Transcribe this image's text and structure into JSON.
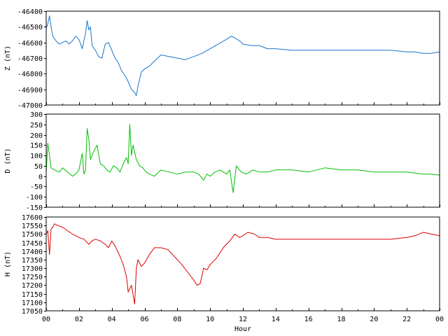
{
  "chart_data": [
    {
      "type": "line",
      "ylabel": "Z (nT)",
      "ylim": [
        -47000,
        -46400
      ],
      "yticks": [
        -46400,
        -46500,
        -46600,
        -46700,
        -46800,
        -46900,
        -47000
      ],
      "xlim": [
        0,
        24
      ],
      "color": "#1874CD",
      "series": [
        {
          "x": [
            0,
            0.1,
            0.2,
            0.3,
            0.4,
            0.6,
            0.8,
            1.0,
            1.2,
            1.4,
            1.6,
            1.8,
            2.0,
            2.2,
            2.4,
            2.5,
            2.6,
            2.7,
            2.8,
            3.0,
            3.2,
            3.4,
            3.6,
            3.8,
            4.0,
            4.2,
            4.4,
            4.6,
            4.8,
            5.0,
            5.2,
            5.4,
            5.5,
            5.6,
            5.8,
            6.0,
            6.3,
            6.6,
            7.0,
            7.5,
            8.0,
            8.5,
            9.0,
            9.5,
            10.0,
            10.5,
            11.0,
            11.3,
            11.5,
            11.8,
            12.0,
            12.5,
            13.0,
            13.5,
            14.0,
            15.0,
            16.0,
            17.0,
            18.0,
            19.0,
            20.0,
            21.0,
            22.0,
            22.5,
            23.0,
            23.5,
            24.0
          ],
          "y": [
            -46510,
            -46480,
            -46430,
            -46500,
            -46560,
            -46590,
            -46610,
            -46600,
            -46590,
            -46610,
            -46590,
            -46560,
            -46580,
            -46640,
            -46540,
            -46460,
            -46520,
            -46500,
            -46620,
            -46650,
            -46690,
            -46700,
            -46610,
            -46600,
            -46650,
            -46700,
            -46730,
            -46780,
            -46810,
            -46850,
            -46900,
            -46920,
            -46940,
            -46880,
            -46790,
            -46770,
            -46750,
            -46720,
            -46680,
            -46690,
            -46700,
            -46710,
            -46690,
            -46670,
            -46640,
            -46610,
            -46580,
            -46560,
            -46570,
            -46590,
            -46610,
            -46620,
            -46620,
            -46640,
            -46640,
            -46650,
            -46650,
            -46650,
            -46650,
            -46650,
            -46650,
            -46650,
            -46660,
            -46660,
            -46670,
            -46670,
            -46660
          ]
        }
      ]
    },
    {
      "type": "line",
      "ylabel": "D (nT)",
      "ylim": [
        -150,
        300
      ],
      "yticks": [
        300,
        250,
        200,
        150,
        100,
        50,
        0,
        -50,
        -100,
        -150
      ],
      "xlim": [
        0,
        24
      ],
      "color": "#00C000",
      "series": [
        {
          "x": [
            0,
            0.1,
            0.2,
            0.3,
            0.5,
            0.8,
            1.0,
            1.3,
            1.6,
            1.8,
            2.0,
            2.2,
            2.3,
            2.4,
            2.5,
            2.6,
            2.7,
            2.9,
            3.1,
            3.3,
            3.5,
            3.7,
            3.9,
            4.1,
            4.3,
            4.5,
            4.7,
            4.9,
            5.0,
            5.1,
            5.2,
            5.3,
            5.5,
            5.7,
            5.9,
            6.1,
            6.3,
            6.6,
            7.0,
            7.5,
            8.0,
            8.5,
            9.0,
            9.3,
            9.6,
            9.8,
            10.0,
            10.3,
            10.6,
            11.0,
            11.2,
            11.4,
            11.6,
            11.9,
            12.2,
            12.6,
            13.0,
            13.5,
            14.0,
            15.0,
            16.0,
            16.5,
            17.0,
            18.0,
            19.0,
            20.0,
            21.0,
            22.0,
            23.0,
            23.5,
            24.0
          ],
          "y": [
            20,
            160,
            100,
            40,
            30,
            20,
            40,
            20,
            0,
            10,
            30,
            110,
            10,
            30,
            230,
            180,
            80,
            120,
            150,
            60,
            50,
            30,
            20,
            50,
            40,
            20,
            60,
            90,
            60,
            250,
            100,
            150,
            80,
            50,
            40,
            20,
            10,
            0,
            30,
            20,
            10,
            20,
            20,
            10,
            -20,
            10,
            0,
            20,
            30,
            10,
            30,
            -80,
            50,
            20,
            10,
            30,
            20,
            20,
            30,
            30,
            20,
            30,
            40,
            30,
            30,
            20,
            20,
            20,
            10,
            10,
            5
          ]
        }
      ]
    },
    {
      "type": "line",
      "ylabel": "H (nT)",
      "ylim": [
        17050,
        17600
      ],
      "yticks": [
        17600,
        17550,
        17500,
        17450,
        17400,
        17350,
        17300,
        17250,
        17200,
        17150,
        17100,
        17050
      ],
      "xlim": [
        0,
        24
      ],
      "color": "#E00000",
      "series": [
        {
          "x": [
            0,
            0.1,
            0.2,
            0.3,
            0.4,
            0.5,
            0.7,
            1.0,
            1.3,
            1.6,
            2.0,
            2.3,
            2.6,
            2.8,
            3.0,
            3.3,
            3.6,
            3.8,
            4.0,
            4.2,
            4.5,
            4.7,
            4.9,
            5.0,
            5.2,
            5.4,
            5.5,
            5.6,
            5.8,
            6.0,
            6.3,
            6.6,
            7.0,
            7.4,
            7.8,
            8.2,
            8.6,
            9.0,
            9.2,
            9.4,
            9.6,
            9.8,
            10.0,
            10.4,
            10.8,
            11.2,
            11.5,
            11.8,
            12.0,
            12.3,
            12.7,
            13.0,
            13.5,
            14.0,
            15.0,
            16.0,
            17.0,
            18.0,
            19.0,
            20.0,
            21.0,
            22.0,
            22.5,
            23.0,
            23.5,
            24.0
          ],
          "y": [
            17500,
            17520,
            17380,
            17530,
            17540,
            17560,
            17550,
            17540,
            17520,
            17500,
            17480,
            17470,
            17440,
            17460,
            17470,
            17460,
            17440,
            17420,
            17460,
            17430,
            17370,
            17320,
            17250,
            17160,
            17200,
            17090,
            17300,
            17350,
            17310,
            17330,
            17380,
            17420,
            17420,
            17410,
            17370,
            17330,
            17280,
            17230,
            17200,
            17210,
            17300,
            17290,
            17320,
            17360,
            17420,
            17460,
            17500,
            17480,
            17490,
            17510,
            17500,
            17480,
            17480,
            17470,
            17470,
            17470,
            17470,
            17470,
            17470,
            17470,
            17470,
            17480,
            17490,
            17510,
            17500,
            17490
          ]
        }
      ]
    }
  ],
  "x_axis": {
    "label": "Hour",
    "tick_labels": [
      "00",
      "02",
      "04",
      "06",
      "08",
      "10",
      "12",
      "14",
      "16",
      "18",
      "20",
      "22",
      "00"
    ]
  }
}
